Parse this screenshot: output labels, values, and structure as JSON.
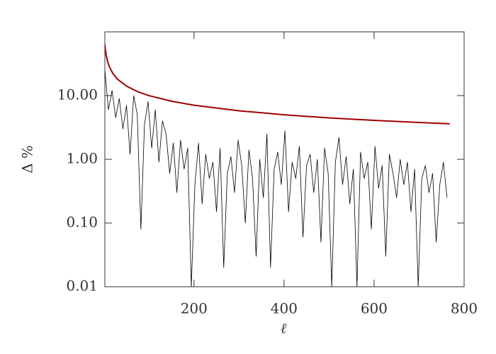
{
  "chart_data": {
    "type": "line",
    "xlabel": "ℓ",
    "ylabel": "Δ %",
    "ylog": true,
    "xlim": [
      2,
      800
    ],
    "xticks": [
      200,
      400,
      600,
      800
    ],
    "ylim": [
      0.01,
      100
    ],
    "yticks": [
      {
        "value": 0.01,
        "label": "0.01"
      },
      {
        "value": 0.1,
        "label": "0.10"
      },
      {
        "value": 1,
        "label": "1.00"
      },
      {
        "value": 10,
        "label": "10.00"
      }
    ],
    "series": [
      {
        "color": "#000000",
        "x": [
          2,
          10,
          18,
          26,
          34,
          42,
          50,
          58,
          66,
          74,
          82,
          90,
          98,
          106,
          114,
          122,
          130,
          138,
          146,
          154,
          162,
          170,
          178,
          186,
          194,
          202,
          210,
          218,
          226,
          234,
          242,
          250,
          258,
          266,
          274,
          282,
          290,
          298,
          306,
          314,
          322,
          330,
          338,
          346,
          354,
          362,
          370,
          378,
          386,
          394,
          402,
          410,
          418,
          426,
          434,
          442,
          450,
          458,
          466,
          474,
          482,
          490,
          498,
          506,
          514,
          522,
          530,
          538,
          546,
          554,
          562,
          570,
          578,
          586,
          594,
          602,
          610,
          618,
          626,
          634,
          642,
          650,
          658,
          666,
          674,
          682,
          690,
          698,
          706,
          714,
          722,
          730,
          738,
          746,
          754,
          762
        ],
        "values": [
          25,
          6,
          12,
          4.5,
          9,
          3,
          7,
          1.2,
          10,
          5,
          0.08,
          3.5,
          8,
          1.5,
          6,
          0.9,
          4,
          2.5,
          0.6,
          1.8,
          0.3,
          2,
          0.7,
          1.5,
          0.01,
          0.4,
          1.8,
          0.2,
          1.2,
          0.5,
          0.9,
          0.15,
          1.5,
          0.02,
          0.6,
          1.1,
          0.3,
          2,
          0.8,
          0.1,
          1.4,
          0.5,
          0.03,
          1.0,
          0.25,
          2.5,
          0.02,
          0.7,
          1.3,
          0.4,
          2.8,
          0.15,
          0.9,
          0.5,
          1.6,
          0.06,
          0.8,
          1.2,
          0.3,
          1.0,
          0.05,
          1.5,
          0.6,
          0.01,
          0.9,
          2.2,
          0.4,
          1.1,
          0.2,
          0.7,
          0.01,
          1.3,
          0.5,
          0.9,
          0.08,
          1.6,
          0.35,
          0.8,
          0.03,
          1.2,
          0.6,
          0.25,
          1.0,
          0.4,
          0.9,
          0.15,
          0.7,
          0.01,
          0.5,
          0.8,
          0.3,
          0.6,
          0.05,
          0.4,
          0.9,
          0.25
        ]
      },
      {
        "color": "#a00000",
        "x": [
          2,
          3,
          5,
          8,
          12,
          20,
          30,
          50,
          75,
          100,
          150,
          200,
          300,
          400,
          500,
          600,
          700,
          768
        ],
        "values": [
          63.2,
          53.5,
          42.6,
          34.3,
          28.3,
          22.1,
          18.1,
          14.1,
          11.5,
          9.98,
          8.15,
          7.06,
          5.77,
          5.0,
          4.47,
          4.08,
          3.78,
          3.61
        ]
      }
    ]
  }
}
